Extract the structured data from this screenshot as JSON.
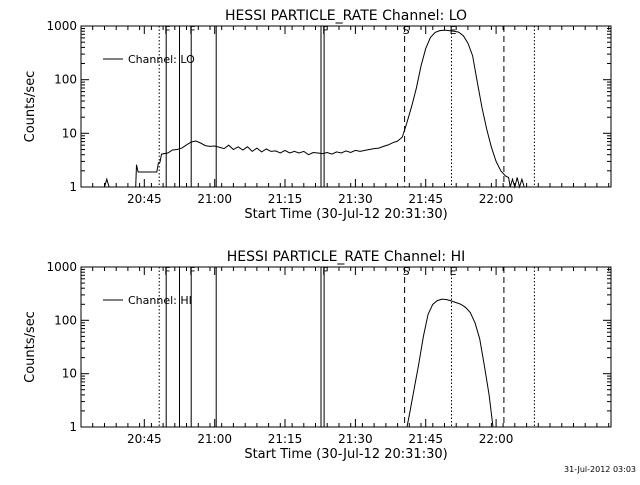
{
  "footer": {
    "timestamp": "31-Jul-2012 03:03"
  },
  "chart_data": [
    {
      "type": "line",
      "title": "HESSI PARTICLE_RATE Channel: LO",
      "xlabel": "Start Time (30-Jul-12 20:31:30)",
      "ylabel": "Counts/sec",
      "y_scale": "log",
      "xlim_minutes_after_start": [
        0,
        113
      ],
      "ylim": [
        1,
        1000
      ],
      "x_ticks": [
        "20:45",
        "21:00",
        "21:15",
        "21:30",
        "21:45",
        "22:00"
      ],
      "y_ticks": [
        "1",
        "10",
        "100",
        "1000"
      ],
      "legend": {
        "position": "top-left",
        "entries": [
          "Channel: LO"
        ]
      },
      "markers": [
        {
          "label": "F",
          "time": "20:49:40",
          "style": "solid"
        },
        {
          "label": "",
          "time": "20:52:30",
          "style": "solid"
        },
        {
          "label": "F",
          "time": "20:55:00",
          "style": "solid"
        },
        {
          "label": "",
          "time": "21:00:20",
          "style": "solid"
        },
        {
          "label": "",
          "time": "21:22:40",
          "style": "solid"
        },
        {
          "label": "F",
          "time": "21:23:20",
          "style": "solid"
        },
        {
          "label": "S",
          "time": "21:40:30",
          "style": "dashed"
        },
        {
          "label": "E",
          "time": "21:50:30",
          "style": "dotted"
        },
        {
          "label": "",
          "time": "22:01:40",
          "style": "dashed"
        },
        {
          "label": "",
          "time": "20:48:10",
          "style": "dotted"
        },
        {
          "label": "",
          "time": "22:08:10",
          "style": "dotted"
        }
      ],
      "series": [
        {
          "name": "Channel: LO",
          "segments": [
            [
              [
                "20:36:30",
                1
              ],
              [
                "20:37:00",
                1.4
              ],
              [
                "20:37:30",
                1
              ]
            ],
            [
              [
                "20:43:10",
                1
              ],
              [
                "20:43:20",
                2.6
              ],
              [
                "20:43:40",
                1.9
              ],
              [
                "20:47:40",
                1.9
              ],
              [
                "20:48:00",
                2.8
              ],
              [
                "20:48:20",
                2.9
              ],
              [
                "20:48:40",
                4.1
              ],
              [
                "20:50:00",
                4.3
              ],
              [
                "20:51:00",
                4.9
              ],
              [
                "20:52:00",
                5.0
              ],
              [
                "20:53:00",
                5.3
              ],
              [
                "20:54:00",
                6.1
              ],
              [
                "20:55:00",
                6.9
              ],
              [
                "20:56:00",
                7.2
              ],
              [
                "20:57:00",
                6.6
              ],
              [
                "20:58:00",
                5.9
              ],
              [
                "20:59:00",
                5.7
              ],
              [
                "21:00:00",
                5.8
              ],
              [
                "21:02:00",
                5.2
              ],
              [
                "21:03:00",
                6.0
              ],
              [
                "21:04:00",
                5.0
              ],
              [
                "21:05:00",
                5.6
              ],
              [
                "21:06:00",
                4.9
              ],
              [
                "21:07:00",
                5.6
              ],
              [
                "21:08:00",
                4.6
              ],
              [
                "21:09:00",
                5.3
              ],
              [
                "21:10:00",
                4.5
              ],
              [
                "21:11:00",
                5.1
              ],
              [
                "21:12:00",
                4.6
              ],
              [
                "21:13:00",
                4.7
              ],
              [
                "21:14:00",
                4.3
              ],
              [
                "21:15:00",
                4.8
              ],
              [
                "21:16:00",
                4.3
              ],
              [
                "21:17:00",
                4.6
              ],
              [
                "21:18:00",
                4.3
              ],
              [
                "21:19:00",
                4.6
              ],
              [
                "21:20:00",
                4.0
              ],
              [
                "21:21:00",
                4.4
              ],
              [
                "21:22:00",
                4.3
              ],
              [
                "21:23:00",
                4.2
              ],
              [
                "21:24:00",
                4.4
              ],
              [
                "21:25:00",
                4.1
              ],
              [
                "21:26:00",
                4.5
              ],
              [
                "21:27:00",
                4.3
              ],
              [
                "21:28:00",
                4.7
              ],
              [
                "21:29:00",
                4.4
              ],
              [
                "21:30:00",
                4.8
              ],
              [
                "21:31:00",
                4.6
              ],
              [
                "21:32:00",
                4.8
              ],
              [
                "21:33:00",
                5.0
              ],
              [
                "21:34:00",
                5.2
              ],
              [
                "21:35:00",
                5.3
              ],
              [
                "21:36:00",
                5.7
              ],
              [
                "21:37:00",
                6.1
              ],
              [
                "21:38:00",
                6.7
              ],
              [
                "21:39:00",
                7.2
              ],
              [
                "21:40:00",
                8.5
              ],
              [
                "21:41:00",
                16
              ],
              [
                "21:42:00",
                32
              ],
              [
                "21:43:00",
                70
              ],
              [
                "21:44:00",
                180
              ],
              [
                "21:45:00",
                380
              ],
              [
                "21:46:00",
                610
              ],
              [
                "21:47:00",
                760
              ],
              [
                "21:48:00",
                820
              ],
              [
                "21:49:00",
                840
              ],
              [
                "21:50:00",
                820
              ],
              [
                "21:51:00",
                800
              ],
              [
                "21:52:00",
                770
              ],
              [
                "21:53:00",
                660
              ],
              [
                "21:54:00",
                480
              ],
              [
                "21:55:00",
                280
              ],
              [
                "21:56:00",
                90
              ],
              [
                "21:57:00",
                30
              ],
              [
                "21:58:00",
                12
              ],
              [
                "21:59:00",
                5.5
              ],
              [
                "22:00:00",
                3.0
              ],
              [
                "22:01:00",
                2.0
              ],
              [
                "22:02:00",
                1.6
              ],
              [
                "22:02:40",
                1.5
              ],
              [
                "22:03:00",
                1
              ],
              [
                "22:03:30",
                1.4
              ],
              [
                "22:04:00",
                1
              ],
              [
                "22:04:30",
                1.5
              ],
              [
                "22:05:00",
                1
              ],
              [
                "22:05:30",
                1.4
              ],
              [
                "22:06:00",
                1
              ]
            ]
          ]
        }
      ]
    },
    {
      "type": "line",
      "title": "HESSI PARTICLE_RATE Channel: HI",
      "xlabel": "Start Time (30-Jul-12 20:31:30)",
      "ylabel": "Counts/sec",
      "y_scale": "log",
      "xlim_minutes_after_start": [
        0,
        113
      ],
      "ylim": [
        1,
        1000
      ],
      "x_ticks": [
        "20:45",
        "21:00",
        "21:15",
        "21:30",
        "21:45",
        "22:00"
      ],
      "y_ticks": [
        "1",
        "10",
        "100",
        "1000"
      ],
      "legend": {
        "position": "top-left",
        "entries": [
          "Channel: HI"
        ]
      },
      "markers": [
        {
          "label": "F",
          "time": "20:49:40",
          "style": "solid"
        },
        {
          "label": "",
          "time": "20:52:30",
          "style": "solid"
        },
        {
          "label": "F",
          "time": "20:55:00",
          "style": "solid"
        },
        {
          "label": "",
          "time": "21:00:20",
          "style": "solid"
        },
        {
          "label": "",
          "time": "21:22:40",
          "style": "solid"
        },
        {
          "label": "F",
          "time": "21:23:20",
          "style": "solid"
        },
        {
          "label": "S",
          "time": "21:40:30",
          "style": "dashed"
        },
        {
          "label": "E",
          "time": "21:50:30",
          "style": "dotted"
        },
        {
          "label": "",
          "time": "22:01:40",
          "style": "dashed"
        },
        {
          "label": "",
          "time": "20:48:10",
          "style": "dotted"
        },
        {
          "label": "",
          "time": "22:08:10",
          "style": "dotted"
        }
      ],
      "series": [
        {
          "name": "Channel: HI",
          "segments": [
            [
              [
                "21:41:00",
                1
              ],
              [
                "21:41:40",
                2
              ],
              [
                "21:42:30",
                5
              ],
              [
                "21:43:30",
                15
              ],
              [
                "21:44:30",
                50
              ],
              [
                "21:45:30",
                130
              ],
              [
                "21:46:30",
                200
              ],
              [
                "21:47:30",
                235
              ],
              [
                "21:48:30",
                250
              ],
              [
                "21:49:30",
                245
              ],
              [
                "21:50:30",
                230
              ],
              [
                "21:51:30",
                215
              ],
              [
                "21:52:30",
                200
              ],
              [
                "21:53:30",
                175
              ],
              [
                "21:54:30",
                140
              ],
              [
                "21:55:30",
                90
              ],
              [
                "21:56:30",
                45
              ],
              [
                "21:57:30",
                14
              ],
              [
                "21:58:30",
                4
              ],
              [
                "21:59:20",
                1
              ]
            ]
          ]
        }
      ]
    }
  ]
}
